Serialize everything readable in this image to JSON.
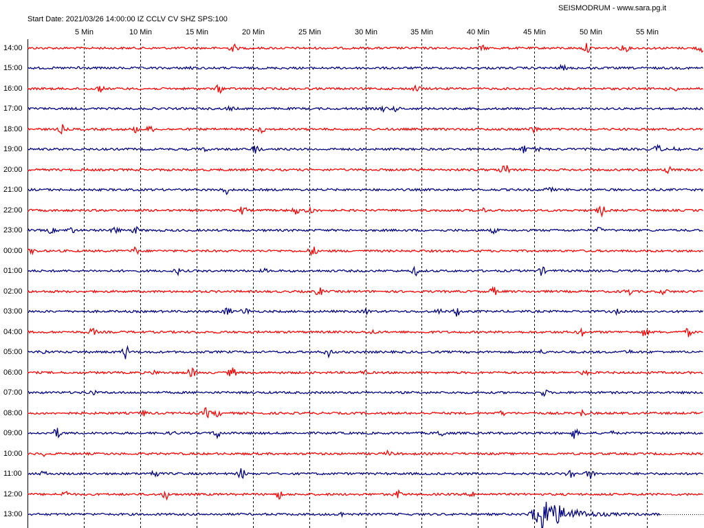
{
  "header": {
    "station_title": "SEISMODRUM - www.sara.pg.it",
    "start_info": "Start Date: 2021/03/26 14:00:00 IZ CCLV CV SHZ SPS:100"
  },
  "minute_labels": [
    "5 Min",
    "10 Min",
    "15 Min",
    "20 Min",
    "25 Min",
    "30 Min",
    "35 Min",
    "40 Min",
    "45 Min",
    "50 Min",
    "55 Min"
  ],
  "hour_labels": [
    "14:00",
    "15:00",
    "16:00",
    "17:00",
    "18:00",
    "19:00",
    "20:00",
    "21:00",
    "22:00",
    "23:00",
    "00:00",
    "01:00",
    "02:00",
    "03:00",
    "04:00",
    "05:00",
    "06:00",
    "07:00",
    "08:00",
    "09:00",
    "10:00",
    "11:00",
    "12:00",
    "13:00"
  ],
  "trace_colors": [
    "#ff0000",
    "#000080"
  ]
}
